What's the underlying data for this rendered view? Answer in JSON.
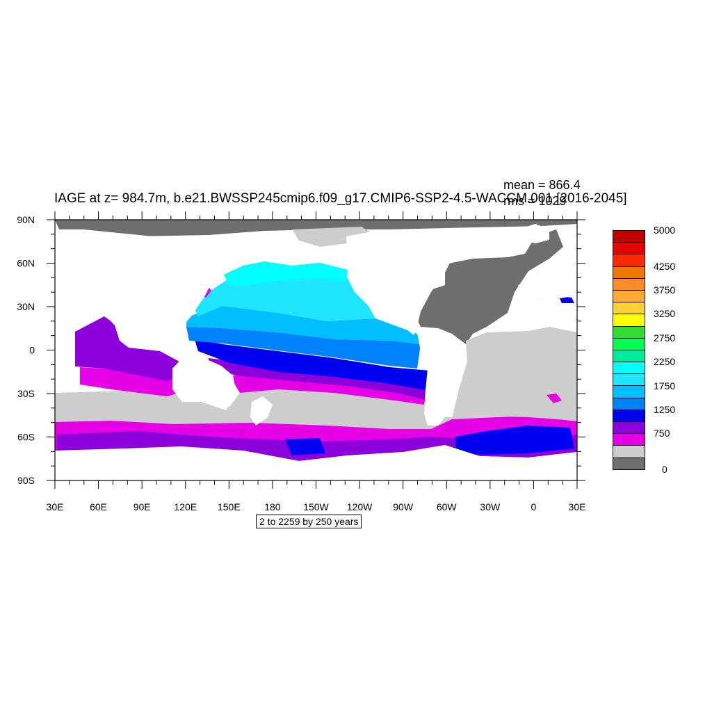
{
  "title": "IAGE at z= 984.7m, b.e21.BWSSP245cmip6.f09_g17.CMIP6-SSP2-4.5-WACCM.001 [2016-2045]",
  "stats": {
    "mean": "mean = 866.4",
    "rms": "rms = 1029"
  },
  "contour_info": "2 to 2259 by 250 years",
  "axes": {
    "lat_labels": [
      "90N",
      "60N",
      "30N",
      "0",
      "30S",
      "60S",
      "90S"
    ],
    "lon_labels": [
      "30E",
      "60E",
      "90E",
      "120E",
      "150E",
      "180",
      "150W",
      "120W",
      "90W",
      "60W",
      "30W",
      "0",
      "30E"
    ]
  },
  "colorbar": {
    "labels": [
      "5000",
      "4250",
      "3750",
      "3250",
      "2750",
      "2250",
      "1750",
      "1250",
      "750",
      "0"
    ],
    "colors_top_to_bottom": [
      "#be0000",
      "#e60000",
      "#ff2800",
      "#f07800",
      "#ff8c28",
      "#ffaa32",
      "#ffd232",
      "#ffff00",
      "#32dc32",
      "#00ff50",
      "#00eba0",
      "#00ffff",
      "#1ee6ff",
      "#00beff",
      "#0082ff",
      "#0000f0",
      "#8c00dc",
      "#e600e6",
      "#cdcdcd",
      "#6e6e6e"
    ]
  },
  "map": {
    "land_color": "#ffffff",
    "ocean_levels": {
      "0": "#6e6e6e",
      "250": "#cdcdcd",
      "500": "#e600e6",
      "750": "#8c00dc",
      "1000": "#0000f0",
      "1250": "#0082ff",
      "1500": "#00beff",
      "1750": "#1ee6ff",
      "2000": "#00ffff"
    }
  }
}
